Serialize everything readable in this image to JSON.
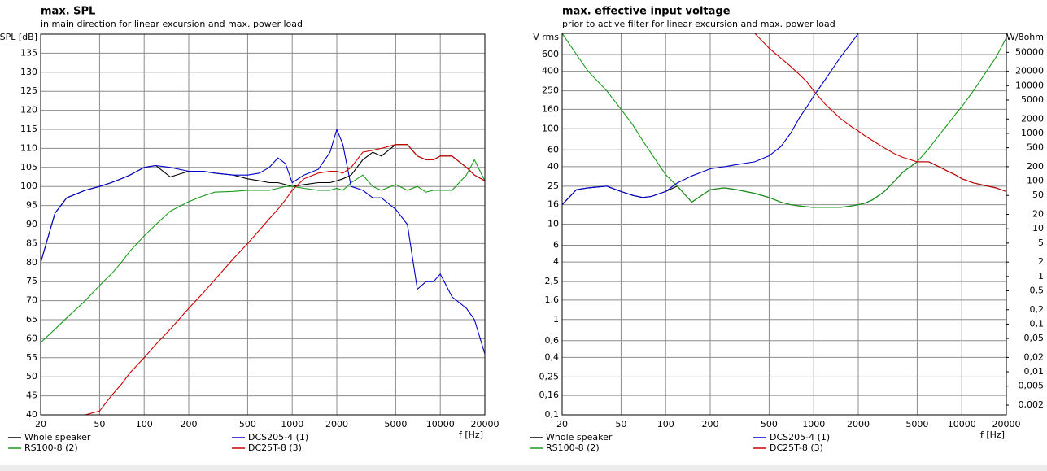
{
  "chart_data": [
    {
      "type": "line",
      "title": "max. SPL",
      "subtitle": "in main direction for linear excursion and max. power load",
      "ylabel": "SPL [dB]",
      "xlabel": "f [Hz]",
      "xlog": true,
      "ylog": false,
      "grid": true,
      "legend": "bottom",
      "xlim": [
        20,
        20000
      ],
      "xticks": [
        20,
        50,
        100,
        200,
        500,
        1000,
        2000,
        5000,
        10000,
        20000
      ],
      "ylim": [
        40,
        140
      ],
      "yticks": [
        40,
        45,
        50,
        55,
        60,
        65,
        70,
        75,
        80,
        85,
        90,
        95,
        100,
        105,
        110,
        115,
        120,
        125,
        130,
        135
      ],
      "x": [
        20,
        25,
        30,
        40,
        50,
        60,
        70,
        80,
        100,
        120,
        150,
        200,
        250,
        300,
        400,
        500,
        600,
        700,
        800,
        900,
        1000,
        1200,
        1500,
        1800,
        2000,
        2200,
        2500,
        3000,
        3500,
        4000,
        5000,
        6000,
        7000,
        8000,
        9000,
        10000,
        12000,
        15000,
        17000,
        20000
      ],
      "series": [
        {
          "name": "Whole speaker",
          "color": "#000000",
          "values": [
            80,
            93,
            97,
            99,
            100,
            101,
            102,
            103,
            105,
            105.5,
            102.5,
            104,
            104,
            103.5,
            103,
            102,
            101.5,
            101,
            101,
            100.5,
            100,
            100.5,
            101,
            101,
            101.5,
            102,
            103,
            107,
            109,
            108,
            111,
            111,
            108,
            107,
            107,
            108,
            108,
            105,
            103,
            101.5
          ]
        },
        {
          "name": "RS100-8 (2)",
          "color": "#1a9a1a",
          "values": [
            59,
            62.5,
            65.5,
            70,
            74,
            77,
            80,
            83,
            87,
            90,
            93.5,
            96,
            97.5,
            98.5,
            98.7,
            99,
            99,
            99,
            99.5,
            100,
            100,
            99.5,
            99,
            99,
            99.5,
            99,
            101,
            103,
            100,
            99,
            100.5,
            99,
            100,
            98.5,
            99,
            99,
            99,
            103,
            107,
            101.5
          ]
        },
        {
          "name": "DCS205-4 (1)",
          "color": "#0000cc",
          "values": [
            80,
            93,
            97,
            99,
            100,
            101,
            102,
            103,
            105,
            105.5,
            105,
            104,
            104,
            103.5,
            103,
            103,
            103.5,
            105,
            107.5,
            106,
            101,
            103,
            104.5,
            109,
            115,
            111,
            100,
            99,
            97,
            97,
            94,
            90,
            73,
            75,
            75,
            77,
            71,
            68,
            65,
            56
          ]
        },
        {
          "name": "DC25T-8 (3)",
          "color": "#cc0000",
          "values": [
            40,
            40,
            40,
            40,
            41,
            45,
            48,
            51,
            55,
            58.5,
            62.5,
            68,
            72,
            75.5,
            81,
            85,
            88.5,
            91.5,
            94,
            96.5,
            99,
            102,
            103.5,
            104,
            104,
            103.5,
            105,
            109,
            109.5,
            110,
            111,
            111,
            108,
            107,
            107,
            108,
            108,
            105,
            103,
            101.5
          ]
        }
      ]
    },
    {
      "type": "line",
      "title": "max. effective input voltage",
      "subtitle": "prior to active filter for linear excursion and max. power load",
      "ylabel": "V rms",
      "y2label": "W/8ohm",
      "xlabel": "f [Hz]",
      "xlog": true,
      "ylog": true,
      "y2log": true,
      "grid": true,
      "legend": "bottom",
      "xlim": [
        20,
        20000
      ],
      "xticks": [
        20,
        50,
        100,
        200,
        500,
        1000,
        2000,
        5000,
        10000,
        20000
      ],
      "ylim": [
        0.1,
        1000
      ],
      "yticks": [
        {
          "value": 0.1,
          "label": "0,1"
        },
        {
          "value": 0.16,
          "label": "0,16"
        },
        {
          "value": 0.25,
          "label": "0,25"
        },
        {
          "value": 0.4,
          "label": "0,4"
        },
        {
          "value": 0.6,
          "label": "0,6"
        },
        1,
        {
          "value": 1.6,
          "label": "1,6"
        },
        {
          "value": 2.5,
          "label": "2,5"
        },
        4,
        6,
        10,
        16,
        25,
        40,
        60,
        100,
        160,
        250,
        400,
        600
      ],
      "y2lim": [
        0.00125,
        125000
      ],
      "y2ticks": [
        {
          "value": 0.002,
          "label": "0,002"
        },
        {
          "value": 0.005,
          "label": "0,005"
        },
        {
          "value": 0.01,
          "label": "0,01"
        },
        {
          "value": 0.02,
          "label": "0,02"
        },
        {
          "value": 0.05,
          "label": "0,05"
        },
        {
          "value": 0.1,
          "label": "0,1"
        },
        {
          "value": 0.2,
          "label": "0,2"
        },
        {
          "value": 0.5,
          "label": "0,5"
        },
        1,
        2,
        5,
        10,
        20,
        50,
        100,
        200,
        500,
        1000,
        2000,
        5000,
        10000,
        20000,
        50000
      ],
      "x": [
        20,
        25,
        30,
        40,
        50,
        60,
        70,
        80,
        100,
        120,
        150,
        200,
        250,
        300,
        400,
        500,
        600,
        700,
        800,
        900,
        1000,
        1200,
        1500,
        1800,
        2000,
        2200,
        2500,
        3000,
        3500,
        4000,
        5000,
        6000,
        7000,
        8000,
        9000,
        10000,
        12000,
        15000,
        17000,
        20000
      ],
      "series": [
        {
          "name": "Whole speaker",
          "color": "#000000",
          "values": [
            16,
            23,
            24,
            25,
            22,
            20,
            19,
            19.5,
            22,
            25,
            17,
            23,
            24,
            23,
            21,
            19,
            17,
            16,
            15.5,
            15.2,
            15,
            15,
            15,
            15.5,
            16,
            16.5,
            18,
            22,
            28,
            35,
            45,
            45,
            40,
            36,
            33,
            30,
            27,
            25,
            24,
            22
          ]
        },
        {
          "name": "RS100-8 (2)",
          "color": "#1a9a1a",
          "values": [
            1000,
            600,
            400,
            250,
            160,
            110,
            75,
            55,
            33,
            25,
            17,
            23,
            24,
            23,
            21,
            19,
            17,
            16,
            15.5,
            15.2,
            15,
            15,
            15,
            15.5,
            16,
            16.5,
            18,
            22,
            28,
            35,
            45,
            62,
            85,
            110,
            140,
            170,
            250,
            420,
            560,
            900
          ]
        },
        {
          "name": "DCS205-4 (1)",
          "color": "#0000cc",
          "values": [
            16,
            23,
            24,
            25,
            22,
            20,
            19,
            19.5,
            22,
            27,
            32,
            38,
            40,
            42,
            45,
            52,
            65,
            90,
            130,
            170,
            220,
            330,
            550,
            800,
            1000,
            1000,
            1000,
            1000,
            1000,
            1000,
            1000,
            1000,
            1000,
            1000,
            1000,
            1000,
            1000,
            1000,
            1000,
            1000
          ]
        },
        {
          "name": "DC25T-8 (3)",
          "color": "#cc0000",
          "values": [
            1000,
            1000,
            1000,
            1000,
            1000,
            1000,
            1000,
            1000,
            1000,
            1000,
            1000,
            1000,
            1000,
            1000,
            1000,
            700,
            550,
            450,
            370,
            310,
            250,
            180,
            130,
            105,
            95,
            85,
            75,
            63,
            55,
            50,
            45,
            45,
            40,
            36,
            33,
            30,
            27,
            25,
            24,
            22
          ]
        }
      ]
    }
  ]
}
